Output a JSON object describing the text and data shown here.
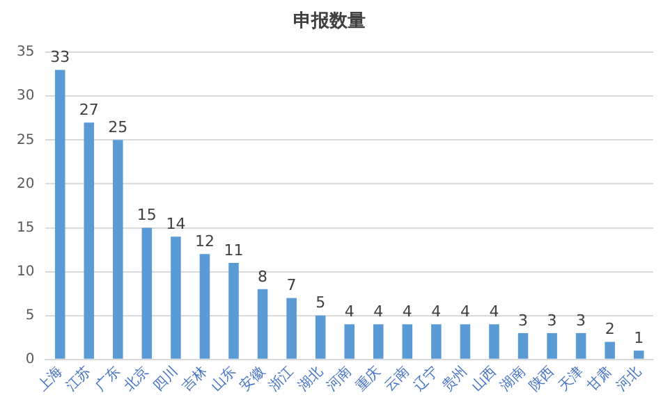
{
  "chart_data": {
    "type": "bar",
    "title": "申报数量",
    "categories": [
      "上海",
      "江苏",
      "广东",
      "北京",
      "四川",
      "吉林",
      "山东",
      "安徽",
      "浙江",
      "湖北",
      "河南",
      "重庆",
      "云南",
      "辽宁",
      "贵州",
      "山西",
      "湖南",
      "陕西",
      "天津",
      "甘肃",
      "河北"
    ],
    "values": [
      33,
      27,
      25,
      15,
      14,
      12,
      11,
      8,
      7,
      5,
      4,
      4,
      4,
      4,
      4,
      4,
      3,
      3,
      3,
      2,
      1
    ],
    "color": "#5b9bd5",
    "ylim": [
      0,
      35
    ],
    "yticks": [
      0,
      5,
      10,
      15,
      20,
      25,
      30,
      35
    ],
    "grid": "y",
    "data_labels": true,
    "legend": false
  }
}
